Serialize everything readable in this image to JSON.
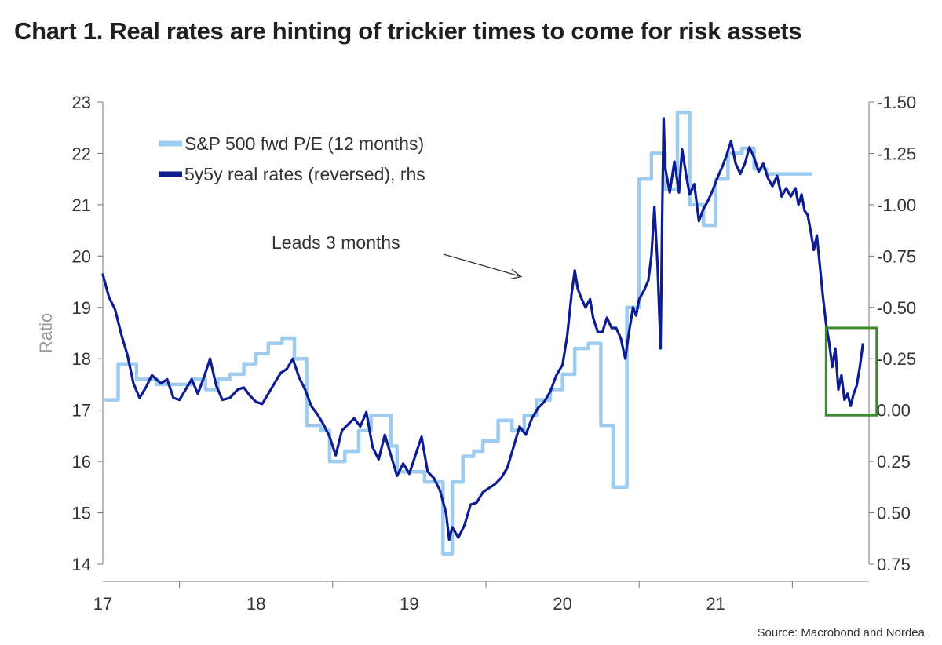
{
  "title": "Chart 1. Real rates are hinting of trickier times to come for risk assets",
  "source": "Source: Macrobond and Nordea",
  "colors": {
    "pe": "#9ecbf0",
    "rates": "#0d1c91",
    "box": "#3a8a2a",
    "axis": "#777777"
  },
  "chart_data": {
    "type": "line",
    "title": "Chart 1. Real rates are hinting of trickier times to come for risk assets",
    "ylabel": "Ratio",
    "ylim": [
      14,
      23
    ],
    "y2lim": [
      0.75,
      -1.5
    ],
    "y2_reversed": true,
    "xlim": [
      2016.5,
      2021.5
    ],
    "x_ticks": [
      "17",
      "18",
      "19",
      "20",
      "21"
    ],
    "y_ticks": [
      "14",
      "15",
      "16",
      "17",
      "18",
      "19",
      "20",
      "21",
      "22",
      "23"
    ],
    "y2_ticks": [
      "0.75",
      "0.50",
      "0.25",
      "0.00",
      "-0.25",
      "-0.50",
      "-0.75",
      "-1.00",
      "-1.25",
      "-1.50"
    ],
    "legend": {
      "position": "top-left"
    },
    "annotation": {
      "text": "Leads 3 months",
      "arrow_to": [
        2019.23,
        19.6
      ]
    },
    "highlight_box": {
      "x": [
        2021.22,
        2021.55
      ],
      "y": [
        16.9,
        18.6
      ]
    },
    "series": [
      {
        "name": "S&P 500 fwd P/E (12 months)",
        "axis": "left",
        "step": true,
        "points": [
          [
            2016.52,
            17.2
          ],
          [
            2016.6,
            17.2
          ],
          [
            2016.6,
            17.9
          ],
          [
            2016.72,
            17.9
          ],
          [
            2016.72,
            17.6
          ],
          [
            2016.85,
            17.6
          ],
          [
            2016.85,
            17.5
          ],
          [
            2017.08,
            17.5
          ],
          [
            2017.08,
            17.6
          ],
          [
            2017.17,
            17.6
          ],
          [
            2017.17,
            17.4
          ],
          [
            2017.25,
            17.4
          ],
          [
            2017.25,
            17.6
          ],
          [
            2017.33,
            17.6
          ],
          [
            2017.33,
            17.7
          ],
          [
            2017.42,
            17.7
          ],
          [
            2017.42,
            17.9
          ],
          [
            2017.5,
            17.9
          ],
          [
            2017.5,
            18.1
          ],
          [
            2017.58,
            18.1
          ],
          [
            2017.58,
            18.3
          ],
          [
            2017.67,
            18.3
          ],
          [
            2017.67,
            18.4
          ],
          [
            2017.75,
            18.4
          ],
          [
            2017.75,
            18.0
          ],
          [
            2017.83,
            18.0
          ],
          [
            2017.83,
            16.7
          ],
          [
            2017.92,
            16.7
          ],
          [
            2017.92,
            16.6
          ],
          [
            2017.98,
            16.6
          ],
          [
            2017.98,
            16.0
          ],
          [
            2018.08,
            16.0
          ],
          [
            2018.08,
            16.2
          ],
          [
            2018.17,
            16.2
          ],
          [
            2018.17,
            16.6
          ],
          [
            2018.25,
            16.6
          ],
          [
            2018.25,
            16.9
          ],
          [
            2018.38,
            16.9
          ],
          [
            2018.38,
            16.3
          ],
          [
            2018.42,
            16.3
          ],
          [
            2018.42,
            15.8
          ],
          [
            2018.6,
            15.8
          ],
          [
            2018.6,
            15.6
          ],
          [
            2018.72,
            15.6
          ],
          [
            2018.72,
            14.2
          ],
          [
            2018.78,
            14.2
          ],
          [
            2018.78,
            15.6
          ],
          [
            2018.85,
            15.6
          ],
          [
            2018.85,
            16.1
          ],
          [
            2018.92,
            16.1
          ],
          [
            2018.92,
            16.2
          ],
          [
            2018.98,
            16.2
          ],
          [
            2018.98,
            16.4
          ],
          [
            2019.08,
            16.4
          ],
          [
            2019.08,
            16.8
          ],
          [
            2019.17,
            16.8
          ],
          [
            2019.17,
            16.6
          ],
          [
            2019.25,
            16.6
          ],
          [
            2019.25,
            16.9
          ],
          [
            2019.33,
            16.9
          ],
          [
            2019.33,
            17.2
          ],
          [
            2019.42,
            17.2
          ],
          [
            2019.42,
            17.4
          ],
          [
            2019.5,
            17.4
          ],
          [
            2019.5,
            17.7
          ],
          [
            2019.58,
            17.7
          ],
          [
            2019.58,
            18.2
          ],
          [
            2019.67,
            18.2
          ],
          [
            2019.67,
            18.3
          ],
          [
            2019.75,
            18.3
          ],
          [
            2019.75,
            16.7
          ],
          [
            2019.83,
            16.7
          ],
          [
            2019.83,
            15.5
          ],
          [
            2019.92,
            15.5
          ],
          [
            2019.92,
            19.0
          ],
          [
            2020.0,
            19.0
          ],
          [
            2020.0,
            21.5
          ],
          [
            2020.08,
            21.5
          ],
          [
            2020.08,
            22.0
          ],
          [
            2020.17,
            22.0
          ],
          [
            2020.17,
            21.3
          ],
          [
            2020.25,
            21.3
          ],
          [
            2020.25,
            22.8
          ],
          [
            2020.33,
            22.8
          ],
          [
            2020.33,
            21.0
          ],
          [
            2020.42,
            21.0
          ],
          [
            2020.42,
            20.6
          ],
          [
            2020.5,
            20.6
          ],
          [
            2020.5,
            21.5
          ],
          [
            2020.58,
            21.5
          ],
          [
            2020.58,
            22.0
          ],
          [
            2020.67,
            22.0
          ],
          [
            2020.67,
            22.1
          ],
          [
            2020.75,
            22.1
          ],
          [
            2020.75,
            21.7
          ],
          [
            2020.83,
            21.7
          ],
          [
            2020.83,
            21.6
          ],
          [
            2020.92,
            21.6
          ],
          [
            2020.92,
            21.6
          ],
          [
            2021.0,
            21.6
          ],
          [
            2021.0,
            21.6
          ],
          [
            2021.12,
            21.6
          ]
        ]
      },
      {
        "name": "5y5y real rates (reversed), rhs",
        "axis": "right",
        "points": [
          [
            2016.5,
            -0.66
          ],
          [
            2016.54,
            -0.55
          ],
          [
            2016.58,
            -0.49
          ],
          [
            2016.62,
            -0.37
          ],
          [
            2016.66,
            -0.27
          ],
          [
            2016.7,
            -0.13
          ],
          [
            2016.74,
            -0.06
          ],
          [
            2016.78,
            -0.11
          ],
          [
            2016.82,
            -0.17
          ],
          [
            2016.85,
            -0.15
          ],
          [
            2016.88,
            -0.13
          ],
          [
            2016.92,
            -0.15
          ],
          [
            2016.96,
            -0.06
          ],
          [
            2017.0,
            -0.05
          ],
          [
            2017.04,
            -0.1
          ],
          [
            2017.08,
            -0.15
          ],
          [
            2017.12,
            -0.08
          ],
          [
            2017.16,
            -0.16
          ],
          [
            2017.2,
            -0.25
          ],
          [
            2017.24,
            -0.12
          ],
          [
            2017.28,
            -0.05
          ],
          [
            2017.33,
            -0.06
          ],
          [
            2017.38,
            -0.1
          ],
          [
            2017.42,
            -0.11
          ],
          [
            2017.46,
            -0.07
          ],
          [
            2017.5,
            -0.04
          ],
          [
            2017.54,
            -0.03
          ],
          [
            2017.58,
            -0.08
          ],
          [
            2017.62,
            -0.13
          ],
          [
            2017.66,
            -0.18
          ],
          [
            2017.7,
            -0.2
          ],
          [
            2017.74,
            -0.25
          ],
          [
            2017.78,
            -0.16
          ],
          [
            2017.82,
            -0.1
          ],
          [
            2017.86,
            -0.02
          ],
          [
            2017.9,
            0.02
          ],
          [
            2017.94,
            0.07
          ],
          [
            2017.98,
            0.13
          ],
          [
            2018.02,
            0.22
          ],
          [
            2018.06,
            0.1
          ],
          [
            2018.1,
            0.07
          ],
          [
            2018.14,
            0.04
          ],
          [
            2018.18,
            0.08
          ],
          [
            2018.22,
            0.01
          ],
          [
            2018.26,
            0.18
          ],
          [
            2018.3,
            0.24
          ],
          [
            2018.34,
            0.12
          ],
          [
            2018.38,
            0.22
          ],
          [
            2018.42,
            0.32
          ],
          [
            2018.46,
            0.26
          ],
          [
            2018.5,
            0.31
          ],
          [
            2018.54,
            0.22
          ],
          [
            2018.58,
            0.13
          ],
          [
            2018.62,
            0.3
          ],
          [
            2018.66,
            0.33
          ],
          [
            2018.7,
            0.39
          ],
          [
            2018.74,
            0.5
          ],
          [
            2018.76,
            0.63
          ],
          [
            2018.78,
            0.57
          ],
          [
            2018.82,
            0.62
          ],
          [
            2018.86,
            0.56
          ],
          [
            2018.9,
            0.46
          ],
          [
            2018.94,
            0.45
          ],
          [
            2018.98,
            0.4
          ],
          [
            2019.02,
            0.38
          ],
          [
            2019.06,
            0.36
          ],
          [
            2019.1,
            0.33
          ],
          [
            2019.14,
            0.28
          ],
          [
            2019.18,
            0.18
          ],
          [
            2019.22,
            0.08
          ],
          [
            2019.26,
            0.12
          ],
          [
            2019.3,
            0.04
          ],
          [
            2019.34,
            -0.01
          ],
          [
            2019.38,
            -0.04
          ],
          [
            2019.42,
            -0.09
          ],
          [
            2019.46,
            -0.17
          ],
          [
            2019.5,
            -0.22
          ],
          [
            2019.53,
            -0.36
          ],
          [
            2019.56,
            -0.57
          ],
          [
            2019.58,
            -0.68
          ],
          [
            2019.6,
            -0.59
          ],
          [
            2019.62,
            -0.55
          ],
          [
            2019.65,
            -0.5
          ],
          [
            2019.68,
            -0.54
          ],
          [
            2019.7,
            -0.45
          ],
          [
            2019.73,
            -0.38
          ],
          [
            2019.76,
            -0.38
          ],
          [
            2019.79,
            -0.45
          ],
          [
            2019.82,
            -0.4
          ],
          [
            2019.85,
            -0.4
          ],
          [
            2019.88,
            -0.35
          ],
          [
            2019.91,
            -0.25
          ],
          [
            2019.93,
            -0.36
          ],
          [
            2019.96,
            -0.5
          ],
          [
            2019.98,
            -0.46
          ],
          [
            2020.0,
            -0.54
          ],
          [
            2020.03,
            -0.58
          ],
          [
            2020.06,
            -0.63
          ],
          [
            2020.08,
            -0.75
          ],
          [
            2020.1,
            -0.99
          ],
          [
            2020.12,
            -0.71
          ],
          [
            2020.14,
            -0.3
          ],
          [
            2020.15,
            -0.92
          ],
          [
            2020.16,
            -1.42
          ],
          [
            2020.17,
            -1.18
          ],
          [
            2020.2,
            -1.06
          ],
          [
            2020.23,
            -1.21
          ],
          [
            2020.26,
            -1.06
          ],
          [
            2020.28,
            -1.27
          ],
          [
            2020.31,
            -1.13
          ],
          [
            2020.33,
            -1.05
          ],
          [
            2020.36,
            -1.1
          ],
          [
            2020.39,
            -0.92
          ],
          [
            2020.42,
            -0.98
          ],
          [
            2020.45,
            -1.02
          ],
          [
            2020.48,
            -1.07
          ],
          [
            2020.51,
            -1.13
          ],
          [
            2020.54,
            -1.18
          ],
          [
            2020.57,
            -1.24
          ],
          [
            2020.6,
            -1.31
          ],
          [
            2020.63,
            -1.2
          ],
          [
            2020.66,
            -1.15
          ],
          [
            2020.69,
            -1.2
          ],
          [
            2020.72,
            -1.28
          ],
          [
            2020.75,
            -1.23
          ],
          [
            2020.78,
            -1.16
          ],
          [
            2020.81,
            -1.2
          ],
          [
            2020.84,
            -1.13
          ],
          [
            2020.87,
            -1.09
          ],
          [
            2020.9,
            -1.14
          ],
          [
            2020.93,
            -1.04
          ],
          [
            2020.96,
            -1.08
          ],
          [
            2020.99,
            -1.04
          ],
          [
            2021.02,
            -1.08
          ],
          [
            2021.04,
            -1.0
          ],
          [
            2021.06,
            -1.05
          ],
          [
            2021.08,
            -0.97
          ],
          [
            2021.1,
            -0.95
          ],
          [
            2021.12,
            -0.87
          ],
          [
            2021.14,
            -0.78
          ],
          [
            2021.16,
            -0.85
          ],
          [
            2021.18,
            -0.7
          ],
          [
            2021.2,
            -0.55
          ],
          [
            2021.22,
            -0.42
          ],
          [
            2021.24,
            -0.33
          ],
          [
            2021.26,
            -0.21
          ],
          [
            2021.28,
            -0.3
          ],
          [
            2021.3,
            -0.1
          ],
          [
            2021.32,
            -0.17
          ],
          [
            2021.34,
            -0.05
          ],
          [
            2021.36,
            -0.08
          ],
          [
            2021.38,
            -0.02
          ],
          [
            2021.4,
            -0.08
          ],
          [
            2021.42,
            -0.12
          ],
          [
            2021.44,
            -0.21
          ],
          [
            2021.46,
            -0.32
          ]
        ]
      }
    ]
  }
}
